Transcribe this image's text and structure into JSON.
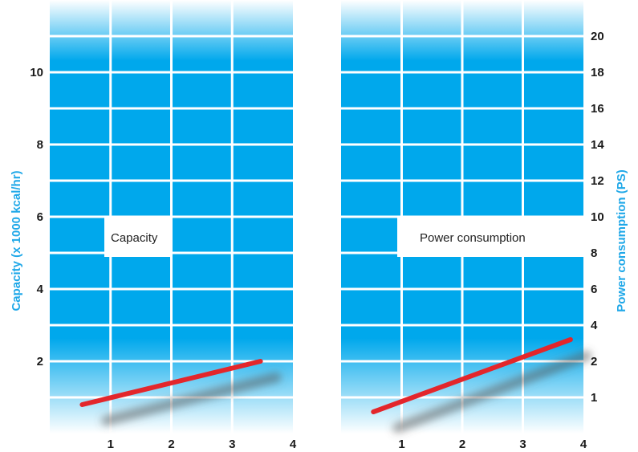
{
  "chart_data": [
    {
      "type": "line",
      "xlabel": "",
      "ylabel": "Capacity (x 1000 kcal/hr)",
      "x_ticks": [
        "1",
        "2",
        "3",
        "4"
      ],
      "y_ticks": [
        "2",
        "4",
        "6",
        "8",
        "10"
      ],
      "xlim": [
        0.25,
        4
      ],
      "ylim": [
        0,
        12
      ],
      "grid": true,
      "annotation": "Capacity",
      "series": [
        {
          "x": [
            0.75,
            3.5
          ],
          "y": [
            0.8,
            2.0
          ]
        }
      ]
    },
    {
      "type": "line",
      "xlabel": "",
      "ylabel": "Power consumption (PS)",
      "x_ticks": [
        "1",
        "2",
        "3",
        "4"
      ],
      "y_ticks": [
        "1",
        "2",
        "4",
        "6",
        "8",
        "10",
        "12",
        "14",
        "16",
        "18",
        "20"
      ],
      "xlim": [
        0.25,
        4
      ],
      "ylim": [
        0,
        22
      ],
      "grid": true,
      "annotation": "Power consumption",
      "series": [
        {
          "x": [
            0.75,
            3.8
          ],
          "y": [
            0.6,
            2.6
          ]
        }
      ]
    }
  ],
  "colors": {
    "panel_fill": "#00a8ec",
    "panel_fade": "#ffffff",
    "grid": "#ffffff",
    "series_line": "#e3262b",
    "shadow": "#555555",
    "axis_title": "#20a8e8",
    "tick_text": "#1a1a1a"
  }
}
